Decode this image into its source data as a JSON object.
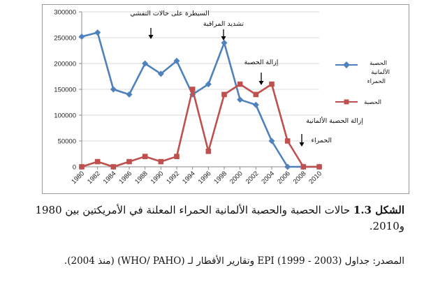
{
  "chart_data": {
    "type": "line",
    "title": "",
    "xlabel": "",
    "ylabel": "",
    "x": [
      "1980",
      "1982",
      "1984",
      "1986",
      "1988",
      "1990",
      "1992",
      "1994",
      "1996",
      "1998",
      "2000",
      "2002",
      "2004",
      "2006",
      "2008",
      "2010"
    ],
    "ylim": [
      0,
      300000
    ],
    "yticks": [
      "0",
      "50000",
      "100000",
      "150000",
      "200000",
      "250000",
      "300000"
    ],
    "grid": "horizontal",
    "legend_position": "right",
    "series": [
      {
        "name": "الحصبة الألمانية الحمراء",
        "color": "#4f81bd",
        "marker": "diamond",
        "values": [
          252000,
          260000,
          150000,
          140000,
          200000,
          180000,
          205000,
          140000,
          160000,
          240000,
          130000,
          120000,
          50000,
          0,
          0,
          0
        ]
      },
      {
        "name": "الحصبة",
        "color": "#c0504d",
        "marker": "square",
        "values": [
          0,
          10000,
          0,
          10000,
          20000,
          10000,
          20000,
          150000,
          30000,
          140000,
          160000,
          140000,
          160000,
          50000,
          0,
          0
        ]
      }
    ],
    "annotations": [
      {
        "text": "السيطرة على حالات التفشي",
        "x": "1988"
      },
      {
        "text": "تشديد المراقبة",
        "x": "1998"
      },
      {
        "text": "إزالة الحصبة",
        "x": "2004"
      },
      {
        "text": "إزالة الحصبة الألمانية الحمراء",
        "x": "2008"
      }
    ]
  },
  "legend": {
    "rubella_lines": [
      "الحصبة",
      "الألمانية",
      "الحمراء"
    ],
    "measles": "الحصبة"
  },
  "annotations_text": {
    "outbreak": "السيطرة على حالات التفشي",
    "surveillance": "تشديد المراقبة",
    "measles_elim": "إزالة الحصبة",
    "rubella_elim_1": "إزالة الحصبة الألمانية",
    "rubella_elim_2": "الحمراء"
  },
  "caption": {
    "label": "الشكل 1.3",
    "text": "حالات الحصبة والحصبة الألمانية الحمراء المعلنة في الأمريكتين بين 1980 و2010.",
    "source": "المصدر: جداول EPI (1999 - 2003) وتقارير الأقطار لـ (WHO/ PAHO) (منذ 2004)."
  },
  "colors": {
    "rubella": "#4f81bd",
    "measles": "#c0504d",
    "grid": "#d9d9d9"
  }
}
